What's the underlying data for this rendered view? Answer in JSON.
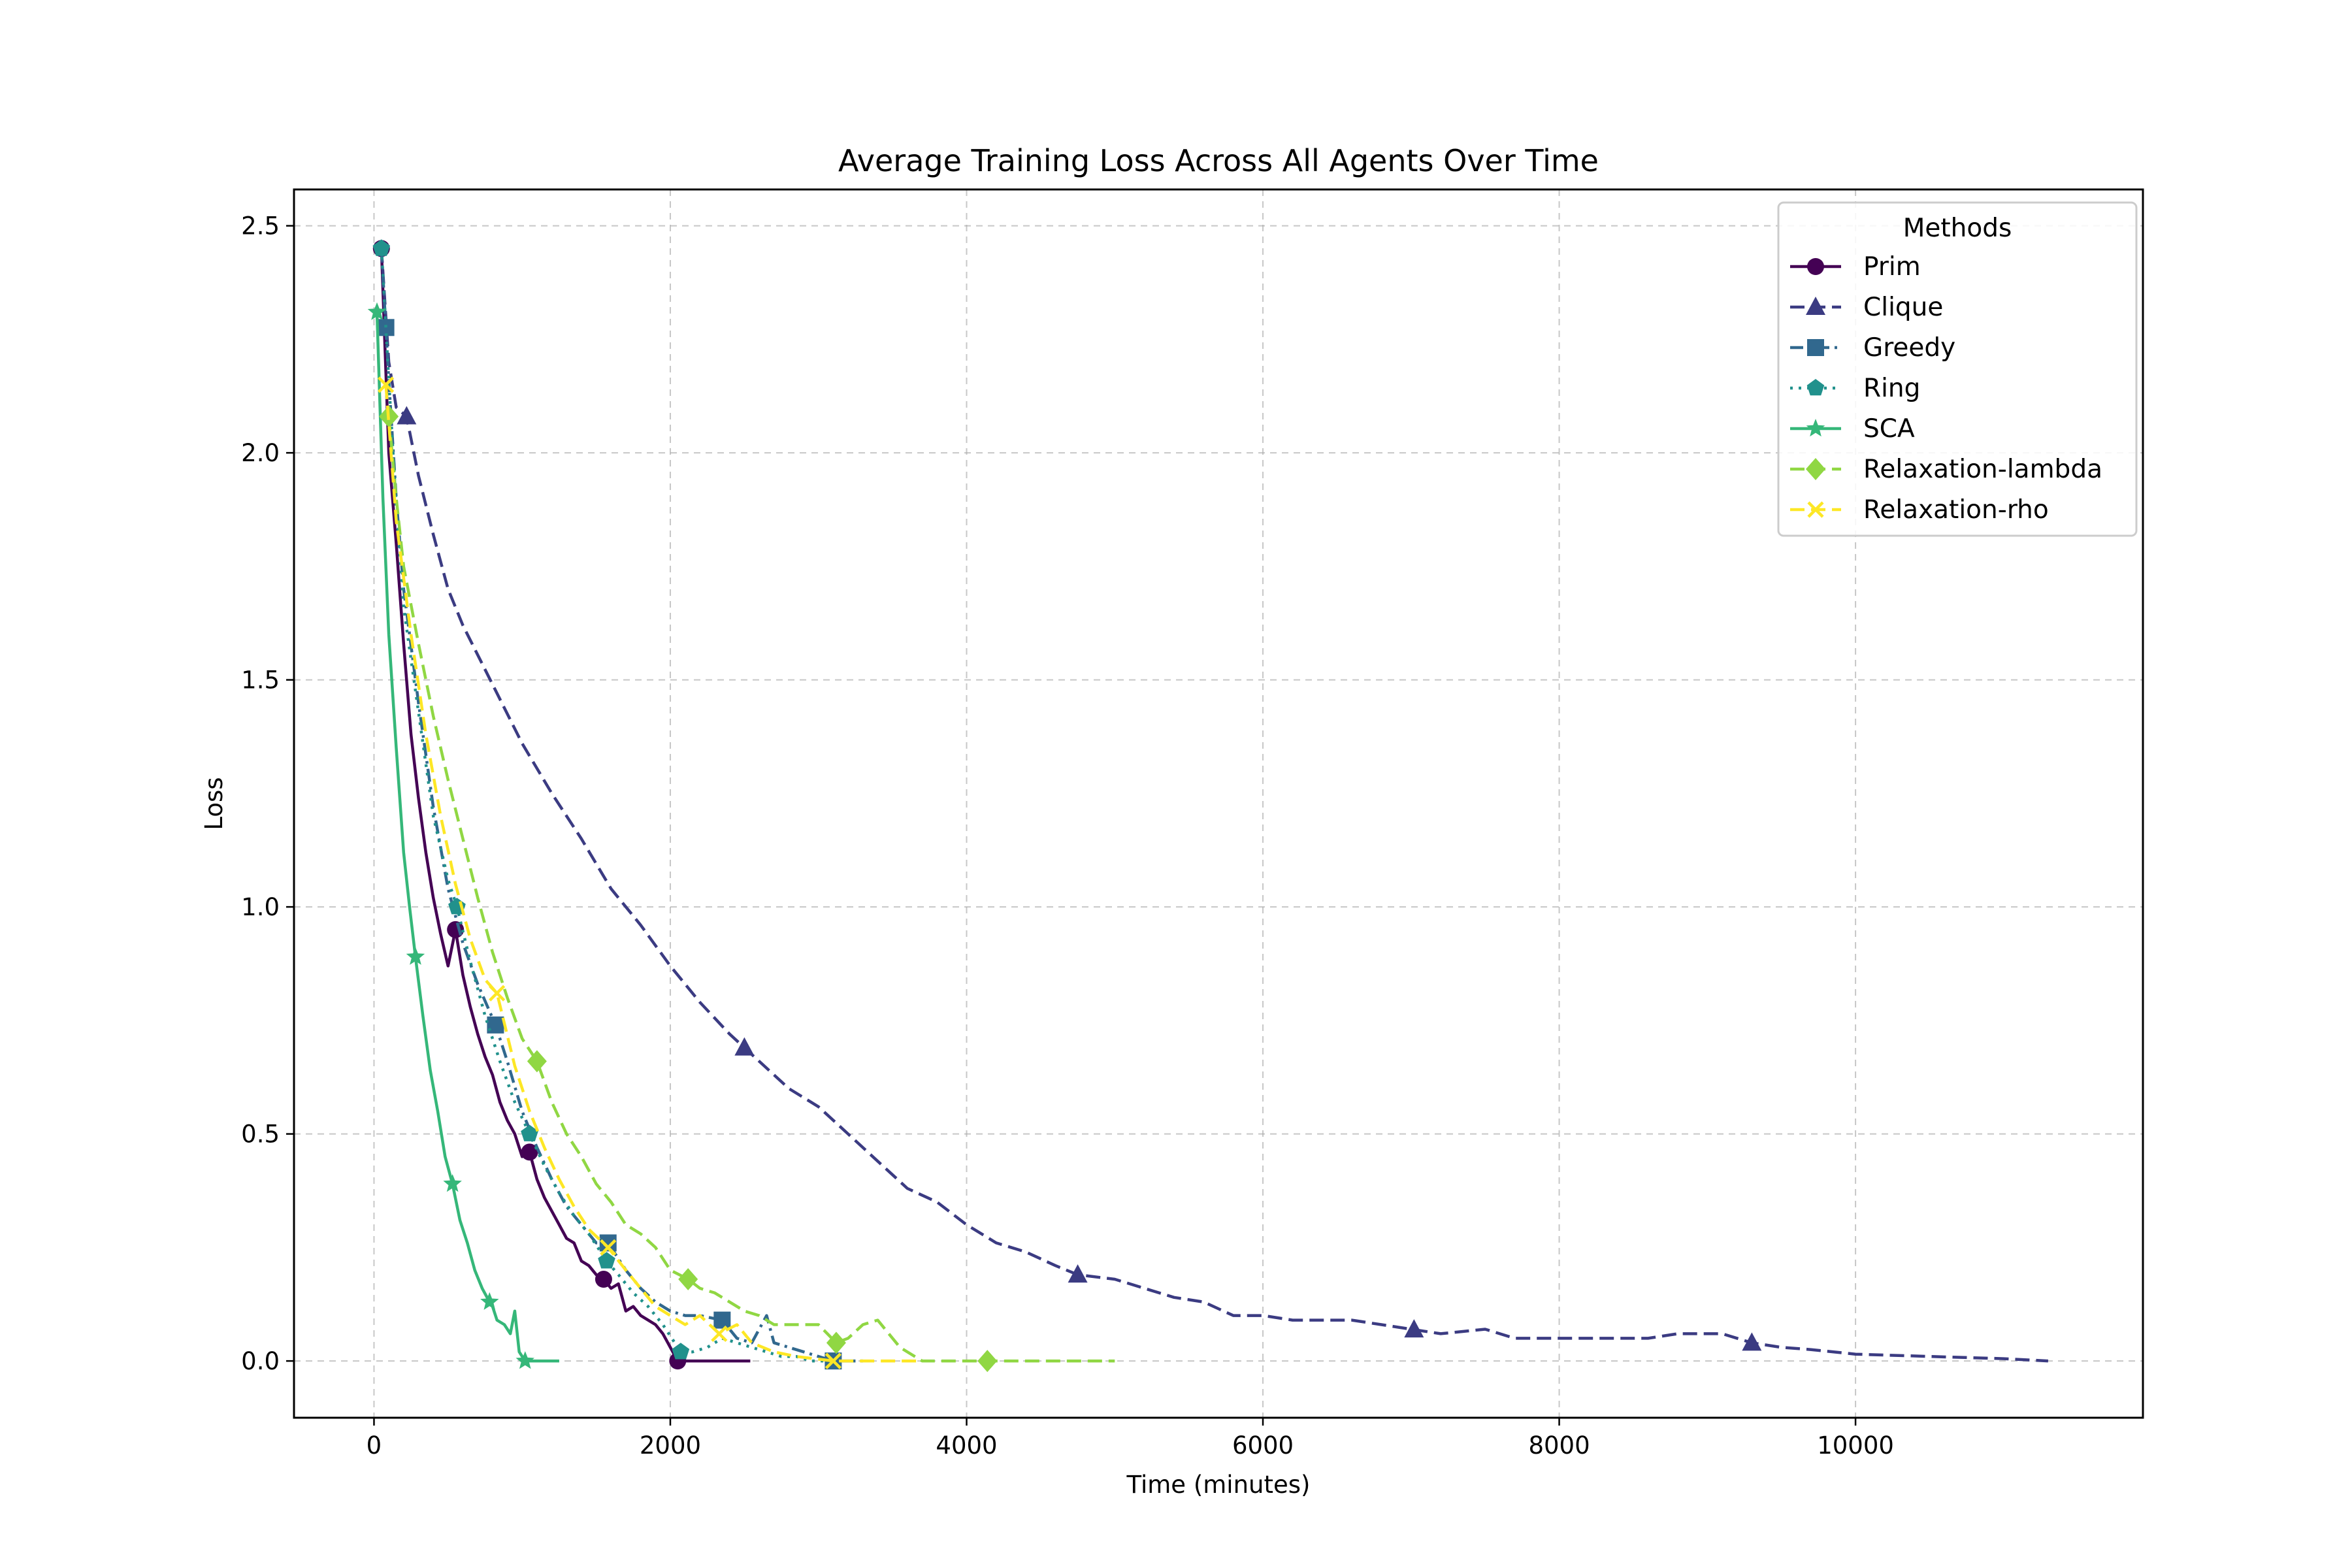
{
  "chart_data": {
    "type": "line",
    "title": "Average Training Loss Across All Agents Over Time",
    "xlabel": "Time (minutes)",
    "ylabel": "Loss",
    "xlim": [
      -540,
      11940
    ],
    "ylim": [
      -0.125,
      2.58
    ],
    "xticks": [
      0,
      2000,
      4000,
      6000,
      8000,
      10000
    ],
    "yticks": [
      0.0,
      0.5,
      1.0,
      1.5,
      2.0,
      2.5
    ],
    "xtick_labels": [
      "0",
      "2000",
      "4000",
      "6000",
      "8000",
      "10000"
    ],
    "ytick_labels": [
      "0.0",
      "0.5",
      "1.0",
      "1.5",
      "2.0",
      "2.5"
    ],
    "grid": true,
    "legend": {
      "title": "Methods",
      "placement": "top-right"
    },
    "series": [
      {
        "name": "Prim",
        "color": "#440154",
        "dash": "solid",
        "marker": "circle",
        "x": [
          50,
          100,
          150,
          200,
          250,
          300,
          350,
          400,
          450,
          500,
          550,
          600,
          650,
          700,
          750,
          800,
          850,
          900,
          950,
          1000,
          1050,
          1100,
          1150,
          1200,
          1250,
          1300,
          1350,
          1400,
          1450,
          1500,
          1550,
          1600,
          1650,
          1700,
          1750,
          1800,
          1850,
          1900,
          1950,
          2000,
          2050,
          2100,
          2200,
          2300,
          2400,
          2540
        ],
        "y": [
          2.45,
          2.0,
          1.8,
          1.58,
          1.38,
          1.24,
          1.12,
          1.02,
          0.94,
          0.87,
          0.95,
          0.85,
          0.78,
          0.72,
          0.67,
          0.63,
          0.57,
          0.53,
          0.5,
          0.45,
          0.46,
          0.4,
          0.36,
          0.33,
          0.3,
          0.27,
          0.26,
          0.22,
          0.21,
          0.19,
          0.18,
          0.16,
          0.17,
          0.11,
          0.12,
          0.1,
          0.09,
          0.08,
          0.06,
          0.03,
          0.0,
          0.0,
          0.0,
          0.0,
          0.0,
          0.0
        ],
        "markers_at": [
          50,
          550,
          1050,
          1550,
          2050
        ]
      },
      {
        "name": "Clique",
        "color": "#3b3b82",
        "dash": "dashed",
        "marker": "triangle",
        "x": [
          50,
          100,
          150,
          220,
          300,
          400,
          500,
          600,
          800,
          1000,
          1200,
          1400,
          1600,
          1800,
          2000,
          2200,
          2400,
          2500,
          2600,
          2800,
          3000,
          3200,
          3400,
          3600,
          3800,
          4000,
          4200,
          4400,
          4600,
          4750,
          5000,
          5200,
          5400,
          5600,
          5800,
          6000,
          6200,
          6400,
          6600,
          6800,
          7000,
          7200,
          7500,
          7700,
          8000,
          8300,
          8600,
          8800,
          9000,
          9100,
          9300,
          9500,
          9700,
          10000,
          10500,
          11000,
          11300
        ],
        "y": [
          2.45,
          2.2,
          2.1,
          2.08,
          1.95,
          1.82,
          1.7,
          1.62,
          1.49,
          1.36,
          1.25,
          1.15,
          1.04,
          0.96,
          0.87,
          0.79,
          0.72,
          0.69,
          0.66,
          0.6,
          0.56,
          0.5,
          0.44,
          0.38,
          0.35,
          0.3,
          0.26,
          0.24,
          0.21,
          0.19,
          0.18,
          0.16,
          0.14,
          0.13,
          0.1,
          0.1,
          0.09,
          0.09,
          0.09,
          0.08,
          0.07,
          0.06,
          0.07,
          0.05,
          0.05,
          0.05,
          0.05,
          0.06,
          0.06,
          0.06,
          0.04,
          0.03,
          0.025,
          0.015,
          0.01,
          0.005,
          0.0
        ],
        "markers_at": [
          220,
          2500,
          4750,
          7020,
          9300
        ]
      },
      {
        "name": "Greedy",
        "color": "#31688e",
        "dash": "dashdot",
        "marker": "square",
        "x": [
          50,
          100,
          150,
          200,
          300,
          400,
          500,
          600,
          700,
          820,
          900,
          1000,
          1100,
          1200,
          1300,
          1400,
          1500,
          1580,
          1700,
          1800,
          1900,
          2000,
          2100,
          2200,
          2350,
          2450,
          2550,
          2650,
          2700,
          2800,
          2900,
          3000,
          3100,
          3300
        ],
        "y": [
          2.45,
          2.16,
          1.9,
          1.7,
          1.45,
          1.22,
          1.04,
          0.92,
          0.83,
          0.74,
          0.66,
          0.55,
          0.47,
          0.4,
          0.34,
          0.3,
          0.26,
          0.26,
          0.2,
          0.16,
          0.13,
          0.11,
          0.1,
          0.1,
          0.09,
          0.05,
          0.04,
          0.1,
          0.04,
          0.03,
          0.02,
          0.01,
          0.0,
          0.0
        ],
        "markers_at": [
          80,
          820,
          1580,
          2350,
          3100
        ]
      },
      {
        "name": "Ring",
        "color": "#21918c",
        "dash": "dotted",
        "marker": "pentagon",
        "x": [
          50,
          100,
          150,
          200,
          300,
          400,
          500,
          560,
          650,
          750,
          850,
          950,
          1050,
          1150,
          1250,
          1350,
          1450,
          1570,
          1650,
          1750,
          1850,
          1950,
          2070,
          2150,
          2250,
          2350,
          2450,
          2550,
          2650,
          2750,
          2850,
          2950,
          3100
        ],
        "y": [
          2.45,
          2.16,
          1.88,
          1.66,
          1.43,
          1.2,
          1.06,
          1.0,
          0.88,
          0.76,
          0.66,
          0.57,
          0.5,
          0.43,
          0.37,
          0.32,
          0.28,
          0.22,
          0.19,
          0.15,
          0.12,
          0.08,
          0.02,
          0.02,
          0.03,
          0.05,
          0.04,
          0.03,
          0.02,
          0.01,
          0.01,
          0.0,
          0.0
        ],
        "markers_at": [
          50,
          560,
          1050,
          1570,
          2070
        ]
      },
      {
        "name": "SCA",
        "color": "#35b779",
        "dash": "solid",
        "marker": "star",
        "x": [
          20,
          60,
          100,
          150,
          200,
          240,
          280,
          330,
          380,
          430,
          480,
          530,
          580,
          630,
          680,
          730,
          780,
          800,
          830,
          880,
          920,
          950,
          980,
          1000,
          1020,
          1100,
          1250
        ],
        "y": [
          2.31,
          1.9,
          1.6,
          1.35,
          1.12,
          1.0,
          0.89,
          0.76,
          0.64,
          0.55,
          0.45,
          0.39,
          0.31,
          0.26,
          0.2,
          0.16,
          0.13,
          0.12,
          0.09,
          0.08,
          0.06,
          0.11,
          0.02,
          0.01,
          0.0,
          0.0,
          0.0
        ],
        "markers_at": [
          20,
          280,
          530,
          780,
          1020
        ]
      },
      {
        "name": "Relaxation-lambda",
        "color": "#90d743",
        "dash": "dashed",
        "marker": "diamond",
        "x": [
          100,
          150,
          200,
          300,
          400,
          500,
          600,
          700,
          800,
          900,
          1000,
          1100,
          1200,
          1300,
          1400,
          1500,
          1600,
          1700,
          1800,
          1900,
          2000,
          2120,
          2200,
          2300,
          2400,
          2500,
          2600,
          2700,
          2800,
          3000,
          3120,
          3200,
          3300,
          3400,
          3550,
          3700,
          3900,
          4140,
          4500,
          5000
        ],
        "y": [
          2.08,
          1.9,
          1.75,
          1.58,
          1.42,
          1.28,
          1.15,
          1.02,
          0.9,
          0.8,
          0.71,
          0.66,
          0.57,
          0.5,
          0.45,
          0.39,
          0.35,
          0.3,
          0.28,
          0.25,
          0.2,
          0.18,
          0.16,
          0.15,
          0.13,
          0.11,
          0.1,
          0.08,
          0.08,
          0.08,
          0.04,
          0.05,
          0.08,
          0.09,
          0.03,
          0.0,
          0.0,
          0.0,
          0.0,
          0.0
        ],
        "markers_at": [
          100,
          1100,
          2120,
          3120,
          4140
        ]
      },
      {
        "name": "Relaxation-rho",
        "color": "#fde725",
        "dash": "dashed",
        "marker": "x",
        "x": [
          80,
          150,
          250,
          350,
          450,
          550,
          650,
          750,
          830,
          950,
          1050,
          1150,
          1250,
          1350,
          1450,
          1580,
          1700,
          1800,
          1900,
          2000,
          2100,
          2200,
          2330,
          2450,
          2550,
          2700,
          2850,
          3100,
          3400,
          3700
        ],
        "y": [
          2.15,
          1.85,
          1.6,
          1.38,
          1.2,
          1.05,
          0.93,
          0.84,
          0.81,
          0.65,
          0.55,
          0.47,
          0.4,
          0.34,
          0.29,
          0.25,
          0.2,
          0.16,
          0.12,
          0.1,
          0.08,
          0.1,
          0.06,
          0.08,
          0.04,
          0.02,
          0.01,
          0.0,
          0.0,
          0.0
        ],
        "markers_at": [
          80,
          830,
          1580,
          2330,
          3100
        ]
      }
    ]
  }
}
